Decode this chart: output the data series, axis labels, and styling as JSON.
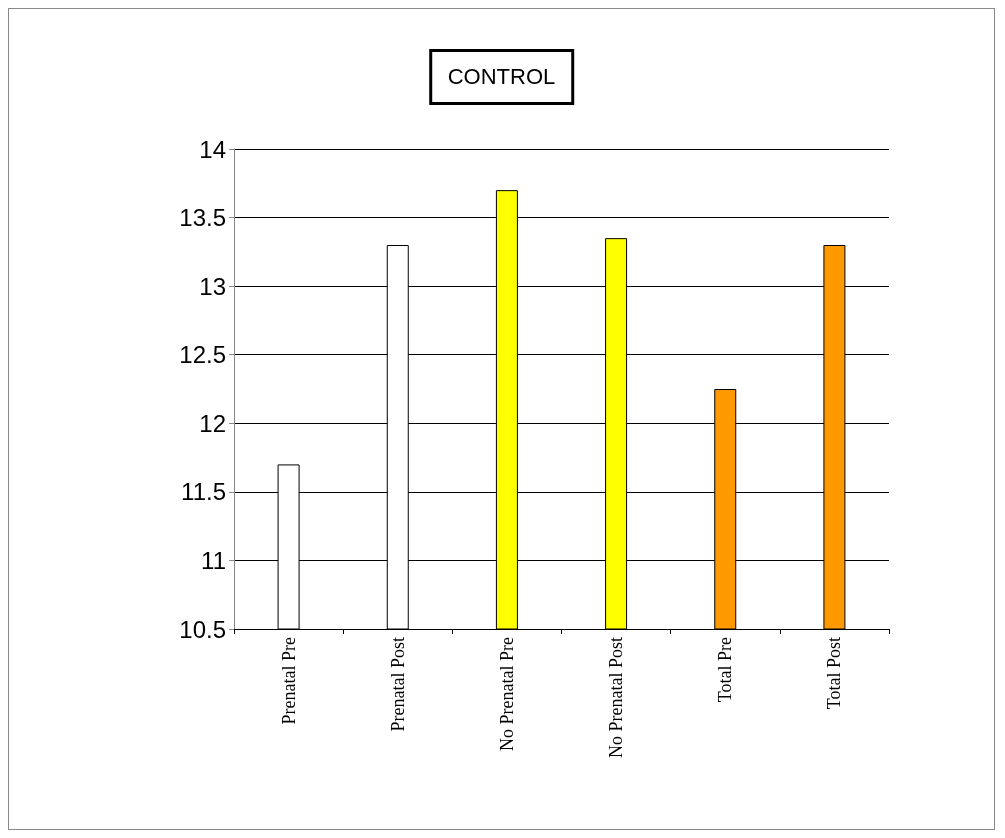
{
  "chart_data": {
    "type": "bar",
    "title": "CONTROL",
    "categories": [
      "Prenatal Pre",
      "Prenatal Post",
      "No Prenatal Pre",
      "No Prenatal Post",
      "Total Pre",
      "Total Post"
    ],
    "values": [
      11.7,
      13.3,
      13.7,
      13.35,
      12.25,
      13.3
    ],
    "colors": [
      "#ffffff",
      "#ffffff",
      "#ffff00",
      "#ffff00",
      "#ff9900",
      "#ff9900"
    ],
    "ylim": [
      10.5,
      14
    ],
    "yticks": [
      10.5,
      11,
      11.5,
      12,
      12.5,
      13,
      13.5,
      14
    ],
    "grid": "y"
  }
}
